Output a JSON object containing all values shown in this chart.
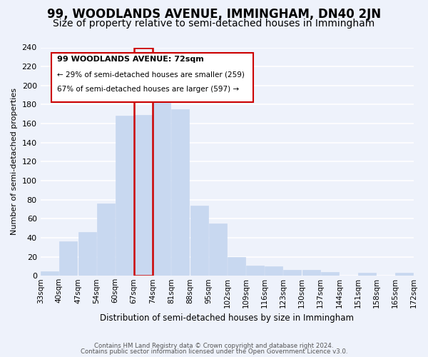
{
  "title": "99, WOODLANDS AVENUE, IMMINGHAM, DN40 2JN",
  "subtitle": "Size of property relative to semi-detached houses in Immingham",
  "xlabel": "Distribution of semi-detached houses by size in Immingham",
  "ylabel": "Number of semi-detached properties",
  "footer_lines": [
    "Contains HM Land Registry data © Crown copyright and database right 2024.",
    "Contains public sector information licensed under the Open Government Licence v3.0."
  ],
  "bins": [
    "33sqm",
    "40sqm",
    "47sqm",
    "54sqm",
    "60sqm",
    "67sqm",
    "74sqm",
    "81sqm",
    "88sqm",
    "95sqm",
    "102sqm",
    "109sqm",
    "116sqm",
    "123sqm",
    "130sqm",
    "137sqm",
    "144sqm",
    "151sqm",
    "158sqm",
    "165sqm",
    "172sqm"
  ],
  "values": [
    5,
    36,
    46,
    76,
    168,
    169,
    192,
    175,
    74,
    55,
    20,
    11,
    10,
    6,
    6,
    4,
    0,
    3,
    0,
    3
  ],
  "bar_color": "#c8d8f0",
  "highlight_box_color": "#cc0000",
  "highlight_bar_index": 5,
  "property_label": "99 WOODLANDS AVENUE: 72sqm",
  "pct_smaller": 29,
  "count_smaller": 259,
  "pct_larger": 67,
  "count_larger": 597,
  "ylim": [
    0,
    240
  ],
  "yticks": [
    0,
    20,
    40,
    60,
    80,
    100,
    120,
    140,
    160,
    180,
    200,
    220,
    240
  ],
  "background_color": "#eef2fb",
  "grid_color": "#ffffff",
  "title_fontsize": 12,
  "subtitle_fontsize": 10
}
